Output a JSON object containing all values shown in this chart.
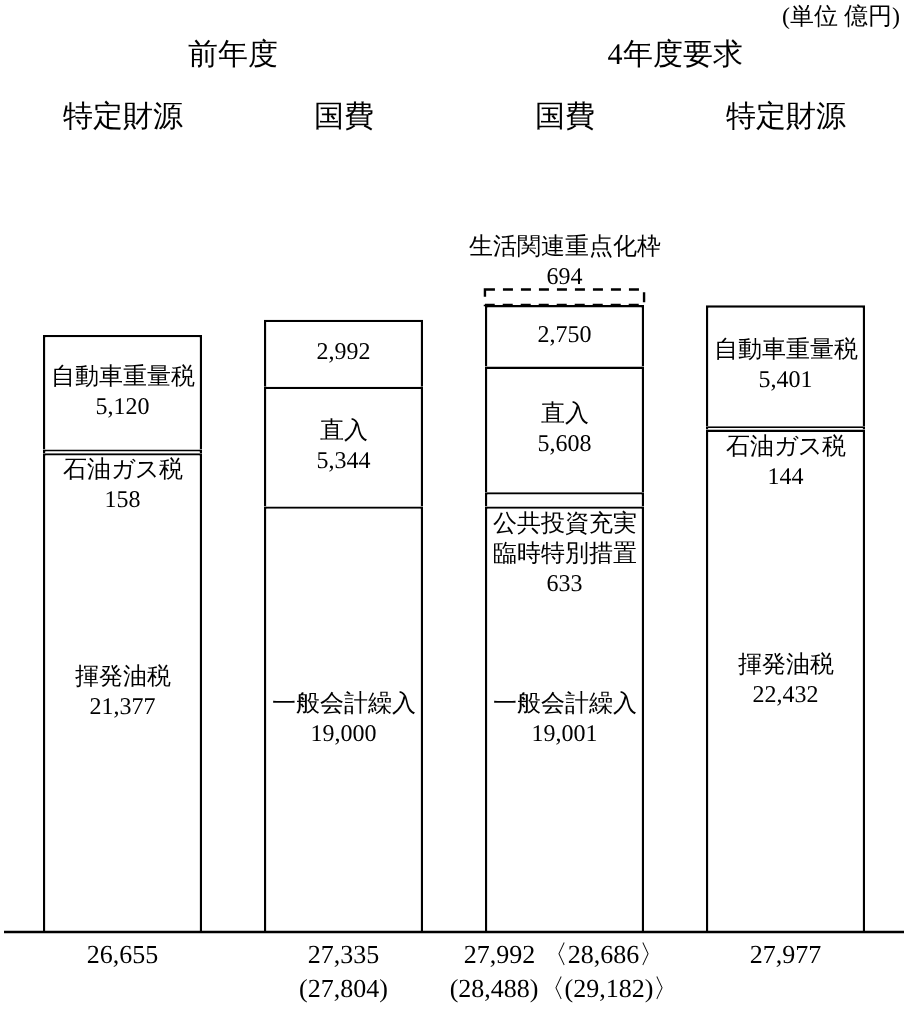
{
  "chart_data": {
    "type": "bar",
    "stacked": true,
    "grid": false,
    "legend": false,
    "categories": [
      "特定財源",
      "国費",
      "国費",
      "特定財源"
    ],
    "series": [
      {
        "name": "揮発油税",
        "color": "#ffffff",
        "values": [
          21377,
          null,
          null,
          22432
        ],
        "value_labels": [
          "21,377",
          null,
          null,
          "22,432"
        ]
      },
      {
        "name": "一般会計繰入",
        "color": "#ffffff",
        "values": [
          null,
          19000,
          19001,
          null
        ],
        "value_labels": [
          null,
          "19,000",
          "19,001",
          null
        ]
      },
      {
        "name": "石油ガス税",
        "color": "#ffffff",
        "values": [
          158,
          null,
          null,
          144
        ],
        "value_labels": [
          "158",
          null,
          null,
          "144"
        ]
      },
      {
        "name": "公共投資充実臨時特別措置",
        "color": "#ffffff",
        "values": [
          null,
          null,
          633,
          null
        ],
        "value_labels": [
          null,
          null,
          "633",
          null
        ]
      },
      {
        "name": "直入",
        "color": "#ffffff",
        "values": [
          null,
          5344,
          5608,
          null
        ],
        "value_labels": [
          null,
          "5,344",
          "5,608",
          null
        ]
      },
      {
        "name": "自動車重量税",
        "color": "#ffffff",
        "values": [
          5120,
          null,
          null,
          5401
        ],
        "value_labels": [
          "5,120",
          null,
          null,
          "5,401"
        ]
      },
      {
        "color": "#ffffff",
        "values": [
          null,
          2992,
          2750,
          null
        ],
        "value_labels": [
          null,
          "2,992",
          "2,750",
          null
        ]
      },
      {
        "name": "生活関連重点化枠",
        "color": "#ffffff",
        "line_style": "dashed",
        "values": [
          null,
          null,
          694,
          null
        ],
        "value_labels": [
          null,
          null,
          "694",
          null
        ]
      }
    ],
    "totals": [
      "26,655",
      "27,335\n(27,804)",
      "27,992 〈28,686〉\n(28,488)〈(29,182)〉",
      "27,977"
    ],
    "annotations": [
      "前年度",
      "4年度要求",
      "(単位 億円)"
    ]
  }
}
